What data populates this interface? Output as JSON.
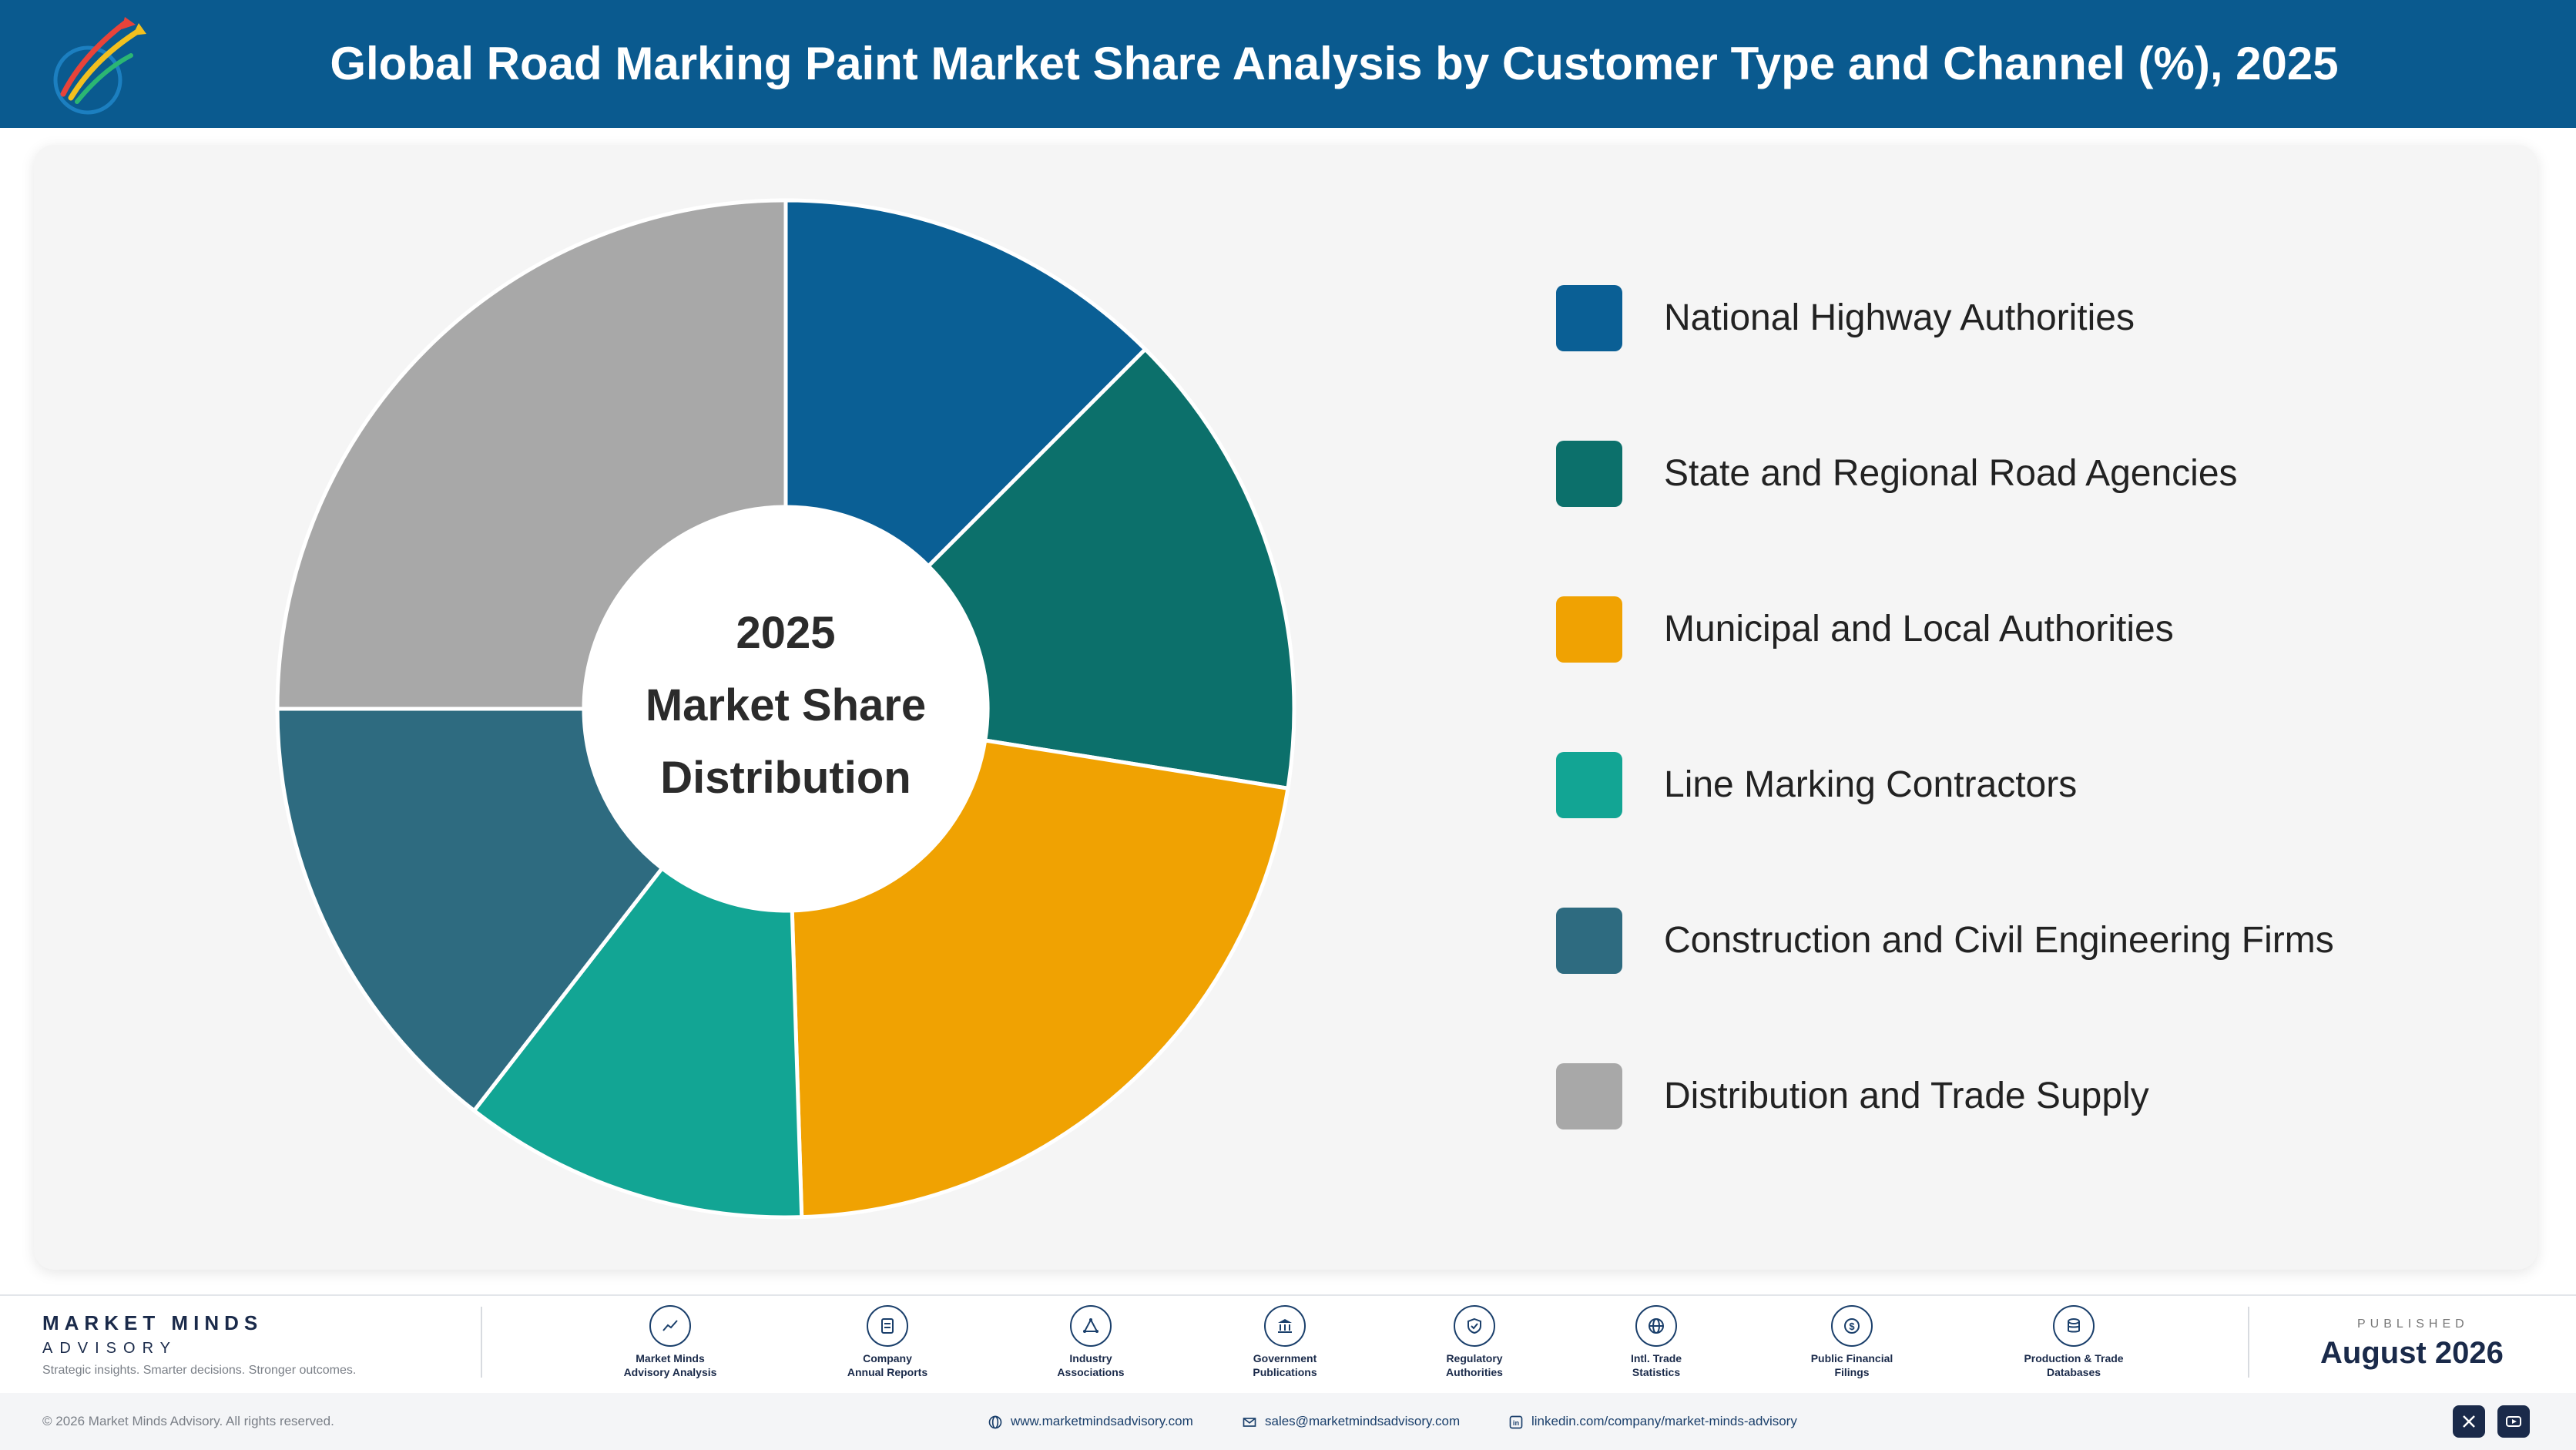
{
  "header": {
    "title": "Global Road Marking Paint Market Share Analysis by Customer Type and Channel (%), 2025"
  },
  "chart_data": {
    "type": "pie",
    "subtype": "donut",
    "center_label": [
      "2025",
      "Market Share",
      "Distribution"
    ],
    "series": [
      {
        "name": "National Highway Authorities",
        "value": 12.5,
        "color": "#0a5f95"
      },
      {
        "name": "State and Regional Road Agencies",
        "value": 15.0,
        "color": "#0c706b"
      },
      {
        "name": "Municipal and Local Authorities",
        "value": 22.0,
        "color": "#f0a202"
      },
      {
        "name": "Line Marking Contractors",
        "value": 11.0,
        "color": "#12a594"
      },
      {
        "name": "Construction and Civil Engineering Firms",
        "value": 14.5,
        "color": "#2e6b80"
      },
      {
        "name": "Distribution and Trade Supply",
        "value": 25.0,
        "color": "#a8a8a8"
      }
    ],
    "legend_position": "right"
  },
  "footer": {
    "brand_name": "MARKET MINDS",
    "brand_sub": "ADVISORY",
    "tagline": "Strategic insights. Smarter decisions. Stronger outcomes.",
    "sources": [
      {
        "line1": "Market Minds",
        "line2": "Advisory Analysis",
        "icon": "chart-line-icon"
      },
      {
        "line1": "Company",
        "line2": "Annual Reports",
        "icon": "document-icon"
      },
      {
        "line1": "Industry",
        "line2": "Associations",
        "icon": "network-icon"
      },
      {
        "line1": "Government",
        "line2": "Publications",
        "icon": "government-building-icon"
      },
      {
        "line1": "Regulatory",
        "line2": "Authorities",
        "icon": "shield-check-icon"
      },
      {
        "line1": "Intl. Trade",
        "line2": "Statistics",
        "icon": "globe-icon"
      },
      {
        "line1": "Public Financial",
        "line2": "Filings",
        "icon": "dollar-coin-icon"
      },
      {
        "line1": "Production & Trade",
        "line2": "Databases",
        "icon": "database-icon"
      }
    ],
    "published_label": "PUBLISHED",
    "published_date": "August 2026",
    "copyright": "© 2026 Market Minds Advisory. All rights reserved.",
    "website": "www.marketmindsadvisory.com",
    "email": "sales@marketmindsadvisory.com",
    "linkedin": "linkedin.com/company/market-minds-advisory",
    "colors": {
      "brand": "#0a5a8f",
      "navy": "#1a2a4a"
    }
  }
}
